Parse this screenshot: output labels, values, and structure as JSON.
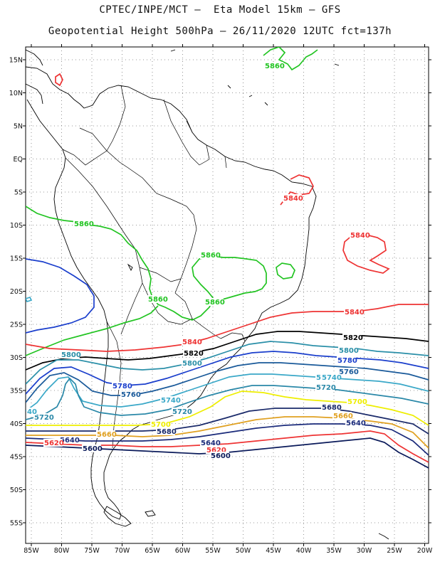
{
  "title_line1": "CPTEC/INPE/MCT –  Eta Model 15km – GFS",
  "title_line2": "Geopotential Height 500hPa – 26/11/2020 12UTC fct=137h",
  "lat_labels": [
    "15N",
    "10N",
    "5N",
    "EQ",
    "5S",
    "10S",
    "15S",
    "20S",
    "25S",
    "30S",
    "35S",
    "40S",
    "45S",
    "50S",
    "55S"
  ],
  "lon_labels": [
    "85W",
    "80W",
    "75W",
    "70W",
    "65W",
    "60W",
    "55W",
    "50W",
    "45W",
    "40W",
    "35W",
    "30W",
    "25W",
    "20W"
  ],
  "colors": {
    "c5860": "#22c422",
    "c5840": "#ee3333",
    "c5820": "#000000",
    "c5800": "#2a8fa8",
    "c5780": "#1a3ecc",
    "c5760": "#1a5a9a",
    "c5740": "#3aa8c8",
    "c5720": "#2a88a8",
    "c5700": "#eeee00",
    "c5680": "#1a2a6a",
    "c5660": "#e0a020",
    "c5640": "#1a2a7a",
    "c5620": "#ee3333",
    "c5600": "#0a1a5a",
    "coast": "#000000"
  },
  "contour_labels": [
    {
      "text": "5860",
      "color": "c5860"
    },
    {
      "text": "5860",
      "color": "c5860"
    },
    {
      "text": "5860",
      "color": "c5860"
    },
    {
      "text": "5860",
      "color": "c5860"
    },
    {
      "text": "5860",
      "color": "c5860"
    },
    {
      "text": "5840",
      "color": "c5840"
    },
    {
      "text": "5840",
      "color": "c5840"
    },
    {
      "text": "5840",
      "color": "c5840"
    },
    {
      "text": "5840",
      "color": "c5840"
    },
    {
      "text": "5820",
      "color": "c5820"
    },
    {
      "text": "5820",
      "color": "c5820"
    },
    {
      "text": "5800",
      "color": "c5800"
    },
    {
      "text": "5800",
      "color": "c5800"
    },
    {
      "text": "5800",
      "color": "c5800"
    },
    {
      "text": "5780",
      "color": "c5780"
    },
    {
      "text": "5780",
      "color": "c5780"
    },
    {
      "text": "5760",
      "color": "c5760"
    },
    {
      "text": "5760",
      "color": "c5760"
    },
    {
      "text": "5740",
      "color": "c5740"
    },
    {
      "text": "5740",
      "color": "c5740"
    },
    {
      "text": "5720",
      "color": "c5720"
    },
    {
      "text": "5720",
      "color": "c5720"
    },
    {
      "text": "5720",
      "color": "c5720"
    },
    {
      "text": "5700",
      "color": "c5700"
    },
    {
      "text": "5700",
      "color": "c5700"
    },
    {
      "text": "5680",
      "color": "c5680"
    },
    {
      "text": "5680",
      "color": "c5680"
    },
    {
      "text": "5660",
      "color": "c5660"
    },
    {
      "text": "5660",
      "color": "c5660"
    },
    {
      "text": "5640",
      "color": "c5640"
    },
    {
      "text": "5640",
      "color": "c5640"
    },
    {
      "text": "5640",
      "color": "c5640"
    },
    {
      "text": "5620",
      "color": "c5620"
    },
    {
      "text": "5620",
      "color": "c5620"
    },
    {
      "text": "5600",
      "color": "c5600"
    },
    {
      "text": "5600",
      "color": "c5600"
    },
    {
      "text": "40",
      "color": "c5740"
    },
    {
      "text": "5740",
      "color": "c5740"
    }
  ]
}
